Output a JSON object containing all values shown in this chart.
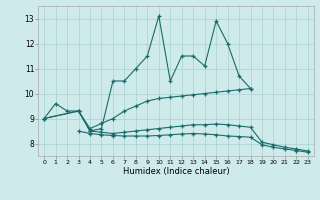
{
  "xlabel": "Humidex (Indice chaleur)",
  "background_color": "#ceeaea",
  "grid_color": "#b0d4d4",
  "line_color": "#1a6b6b",
  "xlim": [
    -0.5,
    23.5
  ],
  "ylim": [
    7.5,
    13.5
  ],
  "xticks": [
    0,
    1,
    2,
    3,
    4,
    5,
    6,
    7,
    8,
    9,
    10,
    11,
    12,
    13,
    14,
    15,
    16,
    17,
    18,
    19,
    20,
    21,
    22,
    23
  ],
  "yticks": [
    8,
    9,
    10,
    11,
    12,
    13
  ],
  "line1_x": [
    0,
    1,
    2,
    3,
    4,
    5,
    6,
    7,
    8,
    9,
    10,
    11,
    12,
    13,
    14,
    15,
    16,
    17,
    18
  ],
  "line1_y": [
    9.0,
    9.6,
    9.3,
    9.3,
    8.5,
    8.6,
    10.5,
    10.5,
    11.0,
    11.5,
    13.1,
    10.5,
    11.5,
    11.5,
    11.1,
    12.9,
    12.0,
    10.7,
    10.2
  ],
  "line2_x": [
    0,
    3,
    4,
    5,
    6,
    7,
    8,
    9,
    10,
    11,
    12,
    13,
    14,
    15,
    16,
    17,
    18
  ],
  "line2_y": [
    9.0,
    9.3,
    8.6,
    8.8,
    9.0,
    9.3,
    9.5,
    9.7,
    9.8,
    9.85,
    9.9,
    9.95,
    10.0,
    10.05,
    10.1,
    10.15,
    10.2
  ],
  "line3_x": [
    0,
    3,
    4,
    5,
    6,
    7,
    8,
    9,
    10,
    11,
    12,
    13,
    14,
    15,
    16,
    17,
    18,
    19,
    20,
    21,
    22,
    23
  ],
  "line3_y": [
    9.0,
    9.3,
    8.5,
    8.45,
    8.4,
    8.45,
    8.5,
    8.55,
    8.6,
    8.65,
    8.7,
    8.75,
    8.75,
    8.78,
    8.75,
    8.7,
    8.65,
    8.05,
    7.95,
    7.85,
    7.78,
    7.7
  ],
  "line4_x": [
    3,
    4,
    5,
    6,
    7,
    8,
    9,
    10,
    11,
    12,
    13,
    14,
    15,
    16,
    17,
    18,
    19,
    20,
    21,
    22,
    23
  ],
  "line4_y": [
    8.5,
    8.4,
    8.35,
    8.32,
    8.3,
    8.3,
    8.3,
    8.32,
    8.35,
    8.38,
    8.4,
    8.38,
    8.35,
    8.3,
    8.28,
    8.25,
    7.95,
    7.85,
    7.78,
    7.72,
    7.65
  ]
}
